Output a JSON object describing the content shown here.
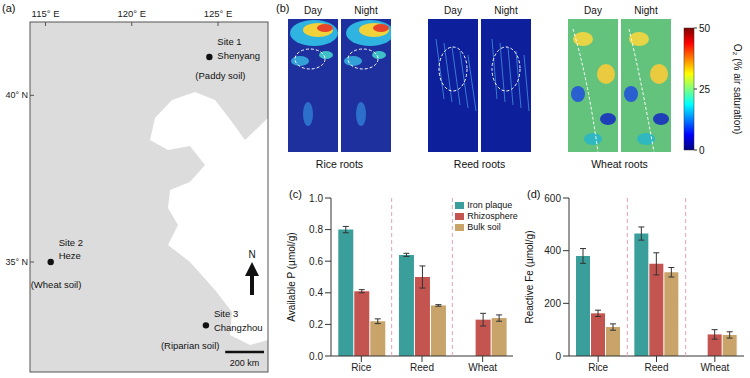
{
  "map": {
    "title": "(a)",
    "xlim": [
      114.1,
      127.9
    ],
    "ylim": [
      31.7,
      42.2
    ],
    "xticks": [
      {
        "value": 115,
        "label": "115° E"
      },
      {
        "value": 120,
        "label": "120° E"
      },
      {
        "value": 125,
        "label": "125° E"
      }
    ],
    "yticks": [
      {
        "value": 40,
        "label": "40° N"
      },
      {
        "value": 35,
        "label": "35° N"
      }
    ],
    "sites": [
      {
        "name": "Site 1",
        "place": "Shenyang",
        "soil": "(Paddy soil)",
        "lon": 124.5,
        "lat": 41.15
      },
      {
        "name": "Site 2",
        "place": "Heze",
        "soil": "(Wheat soil)",
        "lon": 115.3,
        "lat": 35.0
      },
      {
        "name": "Site 3",
        "place": "Changzhou",
        "soil": "(Riparian soil)",
        "lon": 124.3,
        "lat": 33.1
      }
    ],
    "north_label": "N",
    "scale_bar": {
      "value": 200,
      "label": "200 km"
    }
  },
  "oxygen_images": {
    "title": "(b)",
    "panels": [
      {
        "name": "Rice roots",
        "images": [
          "Day",
          "Night"
        ]
      },
      {
        "name": "Reed roots",
        "images": [
          "Day",
          "Night"
        ]
      },
      {
        "name": "Wheat roots",
        "images": [
          "Day",
          "Night"
        ]
      }
    ],
    "colorbar": {
      "label": "O₂ (% air saturation)",
      "range": [
        0,
        50
      ],
      "ticks": [
        0,
        25,
        50
      ]
    }
  },
  "chart_data": [
    {
      "type": "bar",
      "title": "(c)",
      "y_label": "Available P (µmol/g)",
      "categories": [
        "Rice",
        "Reed",
        "Wheat"
      ],
      "series": [
        {
          "name": "Iron plaque",
          "color": "#3a9e9b",
          "values": [
            0.8,
            0.64,
            null
          ],
          "errors": [
            0.02,
            0.01,
            null
          ]
        },
        {
          "name": "Rhizosphere",
          "color": "#c4544f",
          "values": [
            0.41,
            0.5,
            0.23
          ],
          "errors": [
            0.01,
            0.07,
            0.04
          ]
        },
        {
          "name": "Bulk soil",
          "color": "#c8a36a",
          "values": [
            0.22,
            0.32,
            0.24
          ],
          "errors": [
            0.015,
            0.005,
            0.02
          ]
        }
      ],
      "ylim": [
        0,
        1.0
      ],
      "yticks": [
        {
          "value": 0,
          "label": "0.0"
        },
        {
          "value": 0.2,
          "label": "0.2"
        },
        {
          "value": 0.4,
          "label": "0.4"
        },
        {
          "value": 0.6,
          "label": "0.6"
        },
        {
          "value": 0.8,
          "label": "0.8"
        },
        {
          "value": 1.0,
          "label": "1.0"
        }
      ],
      "legend": "top right"
    },
    {
      "type": "bar",
      "title": "(d)",
      "y_label": "Reactive Fe (µmol/g)",
      "categories": [
        "Rice",
        "Reed",
        "Wheat"
      ],
      "series": [
        {
          "name": "Iron plaque",
          "color": "#3a9e9b",
          "values": [
            380,
            465,
            null
          ],
          "errors": [
            28,
            25,
            null
          ]
        },
        {
          "name": "Rhizosphere",
          "color": "#c4544f",
          "values": [
            162,
            350,
            82
          ],
          "errors": [
            12,
            42,
            18
          ]
        },
        {
          "name": "Bulk soil",
          "color": "#c8a36a",
          "values": [
            110,
            318,
            80
          ],
          "errors": [
            12,
            18,
            12
          ]
        }
      ],
      "ylim": [
        0,
        600
      ],
      "yticks": [
        0,
        200,
        400,
        600
      ]
    }
  ]
}
